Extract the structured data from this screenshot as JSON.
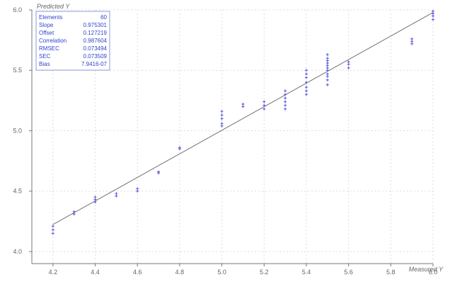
{
  "chart_data": {
    "type": "scatter",
    "title": "",
    "xlabel": "Measured Y",
    "ylabel": "Predicted Y",
    "xlim": [
      4.1,
      6.0
    ],
    "ylim": [
      3.9,
      6.0
    ],
    "x_ticks": [
      "4.2",
      "4.4",
      "4.6",
      "4.8",
      "5.0",
      "5.2",
      "5.4",
      "5.6",
      "5.8",
      "6.0"
    ],
    "y_ticks": [
      "4.0",
      "4.5",
      "5.0",
      "5.5",
      "6.0"
    ],
    "grid": true,
    "colors": {
      "points": "#5555dd",
      "line": "#707070",
      "axis": "#777777",
      "grid": "#dddddd",
      "text": "#666666",
      "stats_text": "#3344cc"
    },
    "regression_line": {
      "slope": 0.975301,
      "offset": 0.127219
    },
    "stats": {
      "placement": "top-left",
      "rows": [
        {
          "label": "Elements",
          "value": "60"
        },
        {
          "label": "Slope",
          "value": "0.975301"
        },
        {
          "label": "Offset",
          "value": "0.127219"
        },
        {
          "label": "Correlation",
          "value": "0.987604"
        },
        {
          "label": "RMSEC",
          "value": "0.073494"
        },
        {
          "label": "SEC",
          "value": "0.073509"
        },
        {
          "label": "Bias",
          "value": "7.9416-07"
        }
      ]
    },
    "series": [
      {
        "points": [
          [
            4.2,
            4.15
          ],
          [
            4.2,
            4.18
          ],
          [
            4.2,
            4.21
          ],
          [
            4.3,
            4.31
          ],
          [
            4.3,
            4.33
          ],
          [
            4.4,
            4.41
          ],
          [
            4.4,
            4.43
          ],
          [
            4.4,
            4.45
          ],
          [
            4.5,
            4.46
          ],
          [
            4.5,
            4.48
          ],
          [
            4.6,
            4.5
          ],
          [
            4.6,
            4.52
          ],
          [
            4.7,
            4.65
          ],
          [
            4.7,
            4.66
          ],
          [
            4.8,
            4.85
          ],
          [
            4.8,
            4.86
          ],
          [
            5.0,
            5.04
          ],
          [
            5.0,
            5.06
          ],
          [
            5.0,
            5.1
          ],
          [
            5.0,
            5.13
          ],
          [
            5.0,
            5.16
          ],
          [
            5.1,
            5.2
          ],
          [
            5.1,
            5.22
          ],
          [
            5.2,
            5.18
          ],
          [
            5.2,
            5.21
          ],
          [
            5.2,
            5.24
          ],
          [
            5.3,
            5.18
          ],
          [
            5.3,
            5.21
          ],
          [
            5.3,
            5.24
          ],
          [
            5.3,
            5.27
          ],
          [
            5.3,
            5.3
          ],
          [
            5.3,
            5.33
          ],
          [
            5.4,
            5.3
          ],
          [
            5.4,
            5.33
          ],
          [
            5.4,
            5.36
          ],
          [
            5.4,
            5.4
          ],
          [
            5.4,
            5.44
          ],
          [
            5.4,
            5.47
          ],
          [
            5.4,
            5.5
          ],
          [
            5.5,
            5.38
          ],
          [
            5.5,
            5.42
          ],
          [
            5.5,
            5.45
          ],
          [
            5.5,
            5.47
          ],
          [
            5.5,
            5.5
          ],
          [
            5.5,
            5.52
          ],
          [
            5.5,
            5.54
          ],
          [
            5.5,
            5.56
          ],
          [
            5.5,
            5.58
          ],
          [
            5.5,
            5.6
          ],
          [
            5.5,
            5.63
          ],
          [
            5.6,
            5.52
          ],
          [
            5.6,
            5.55
          ],
          [
            5.6,
            5.57
          ],
          [
            5.9,
            5.72
          ],
          [
            5.9,
            5.74
          ],
          [
            5.9,
            5.76
          ],
          [
            6.0,
            5.92
          ],
          [
            6.0,
            5.95
          ],
          [
            6.0,
            5.97
          ],
          [
            6.0,
            5.99
          ]
        ]
      }
    ]
  }
}
